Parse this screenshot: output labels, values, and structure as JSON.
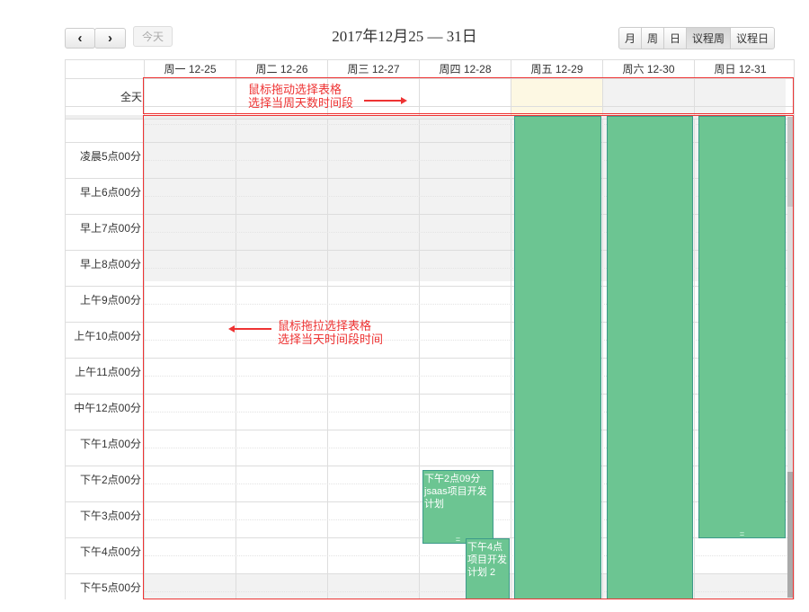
{
  "toolbar": {
    "prev_label": "‹",
    "next_label": "›",
    "today_label": "今天",
    "title": "2017年12月25 — 31日",
    "views": [
      "月",
      "周",
      "日",
      "议程周",
      "议程日"
    ],
    "active_view": "议程周"
  },
  "days": [
    "周一 12-25",
    "周二 12-26",
    "周三 12-27",
    "周四 12-28",
    "周五 12-29",
    "周六 12-30",
    "周日 12-31"
  ],
  "allday_label": "全天",
  "hours": [
    "凌晨5点00分",
    "早上6点00分",
    "早上7点00分",
    "早上8点00分",
    "上午9点00分",
    "上午10点00分",
    "上午11点00分",
    "中午12点00分",
    "下午1点00分",
    "下午2点00分",
    "下午3点00分",
    "下午4点00分",
    "下午5点00分"
  ],
  "events": [
    {
      "day": 3,
      "text": "下午2点09分 jsaas项目开发计划"
    },
    {
      "day": 3,
      "text": "下午4点 项目开发计划 2"
    }
  ],
  "annotations": {
    "top_line1": "鼠标拖动选择表格",
    "top_line2": "选择当周天数时间段",
    "mid_line1": "鼠标拖拉选择表格",
    "mid_line2": "选择当天时间段时间"
  },
  "colors": {
    "event": "#6cc592",
    "annotation": "#e33333",
    "today_highlight": "#fdf8e3"
  }
}
